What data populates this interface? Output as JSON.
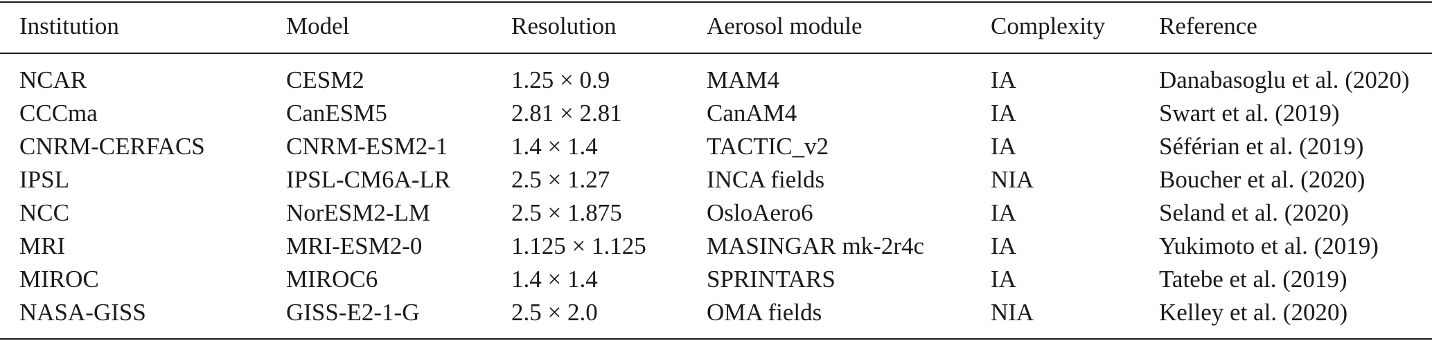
{
  "table": {
    "headers": [
      "Institution",
      "Model",
      "Resolution",
      "Aerosol module",
      "Complexity",
      "Reference"
    ],
    "rows": [
      [
        "NCAR",
        "CESM2",
        "1.25 × 0.9",
        "MAM4",
        "IA",
        "Danabasoglu et al. (2020)"
      ],
      [
        "CCCma",
        "CanESM5",
        "2.81 × 2.81",
        "CanAM4",
        "IA",
        "Swart et al. (2019)"
      ],
      [
        "CNRM-CERFACS",
        "CNRM-ESM2-1",
        "1.4 × 1.4",
        "TACTIC_v2",
        "IA",
        "Séférian et al. (2019)"
      ],
      [
        "IPSL",
        "IPSL-CM6A-LR",
        "2.5 × 1.27",
        "INCA fields",
        "NIA",
        "Boucher et al. (2020)"
      ],
      [
        "NCC",
        "NorESM2-LM",
        "2.5 × 1.875",
        "OsloAero6",
        "IA",
        "Seland et al. (2020)"
      ],
      [
        "MRI",
        "MRI-ESM2-0",
        "1.125 × 1.125",
        "MASINGAR mk-2r4c",
        "IA",
        "Yukimoto et al. (2019)"
      ],
      [
        "MIROC",
        "MIROC6",
        "1.4 × 1.4",
        "SPRINTARS",
        "IA",
        "Tatebe et al. (2019)"
      ],
      [
        "NASA-GISS",
        "GISS-E2-1-G",
        "2.5 × 2.0",
        "OMA fields",
        "NIA",
        "Kelley et al. (2020)"
      ]
    ]
  }
}
